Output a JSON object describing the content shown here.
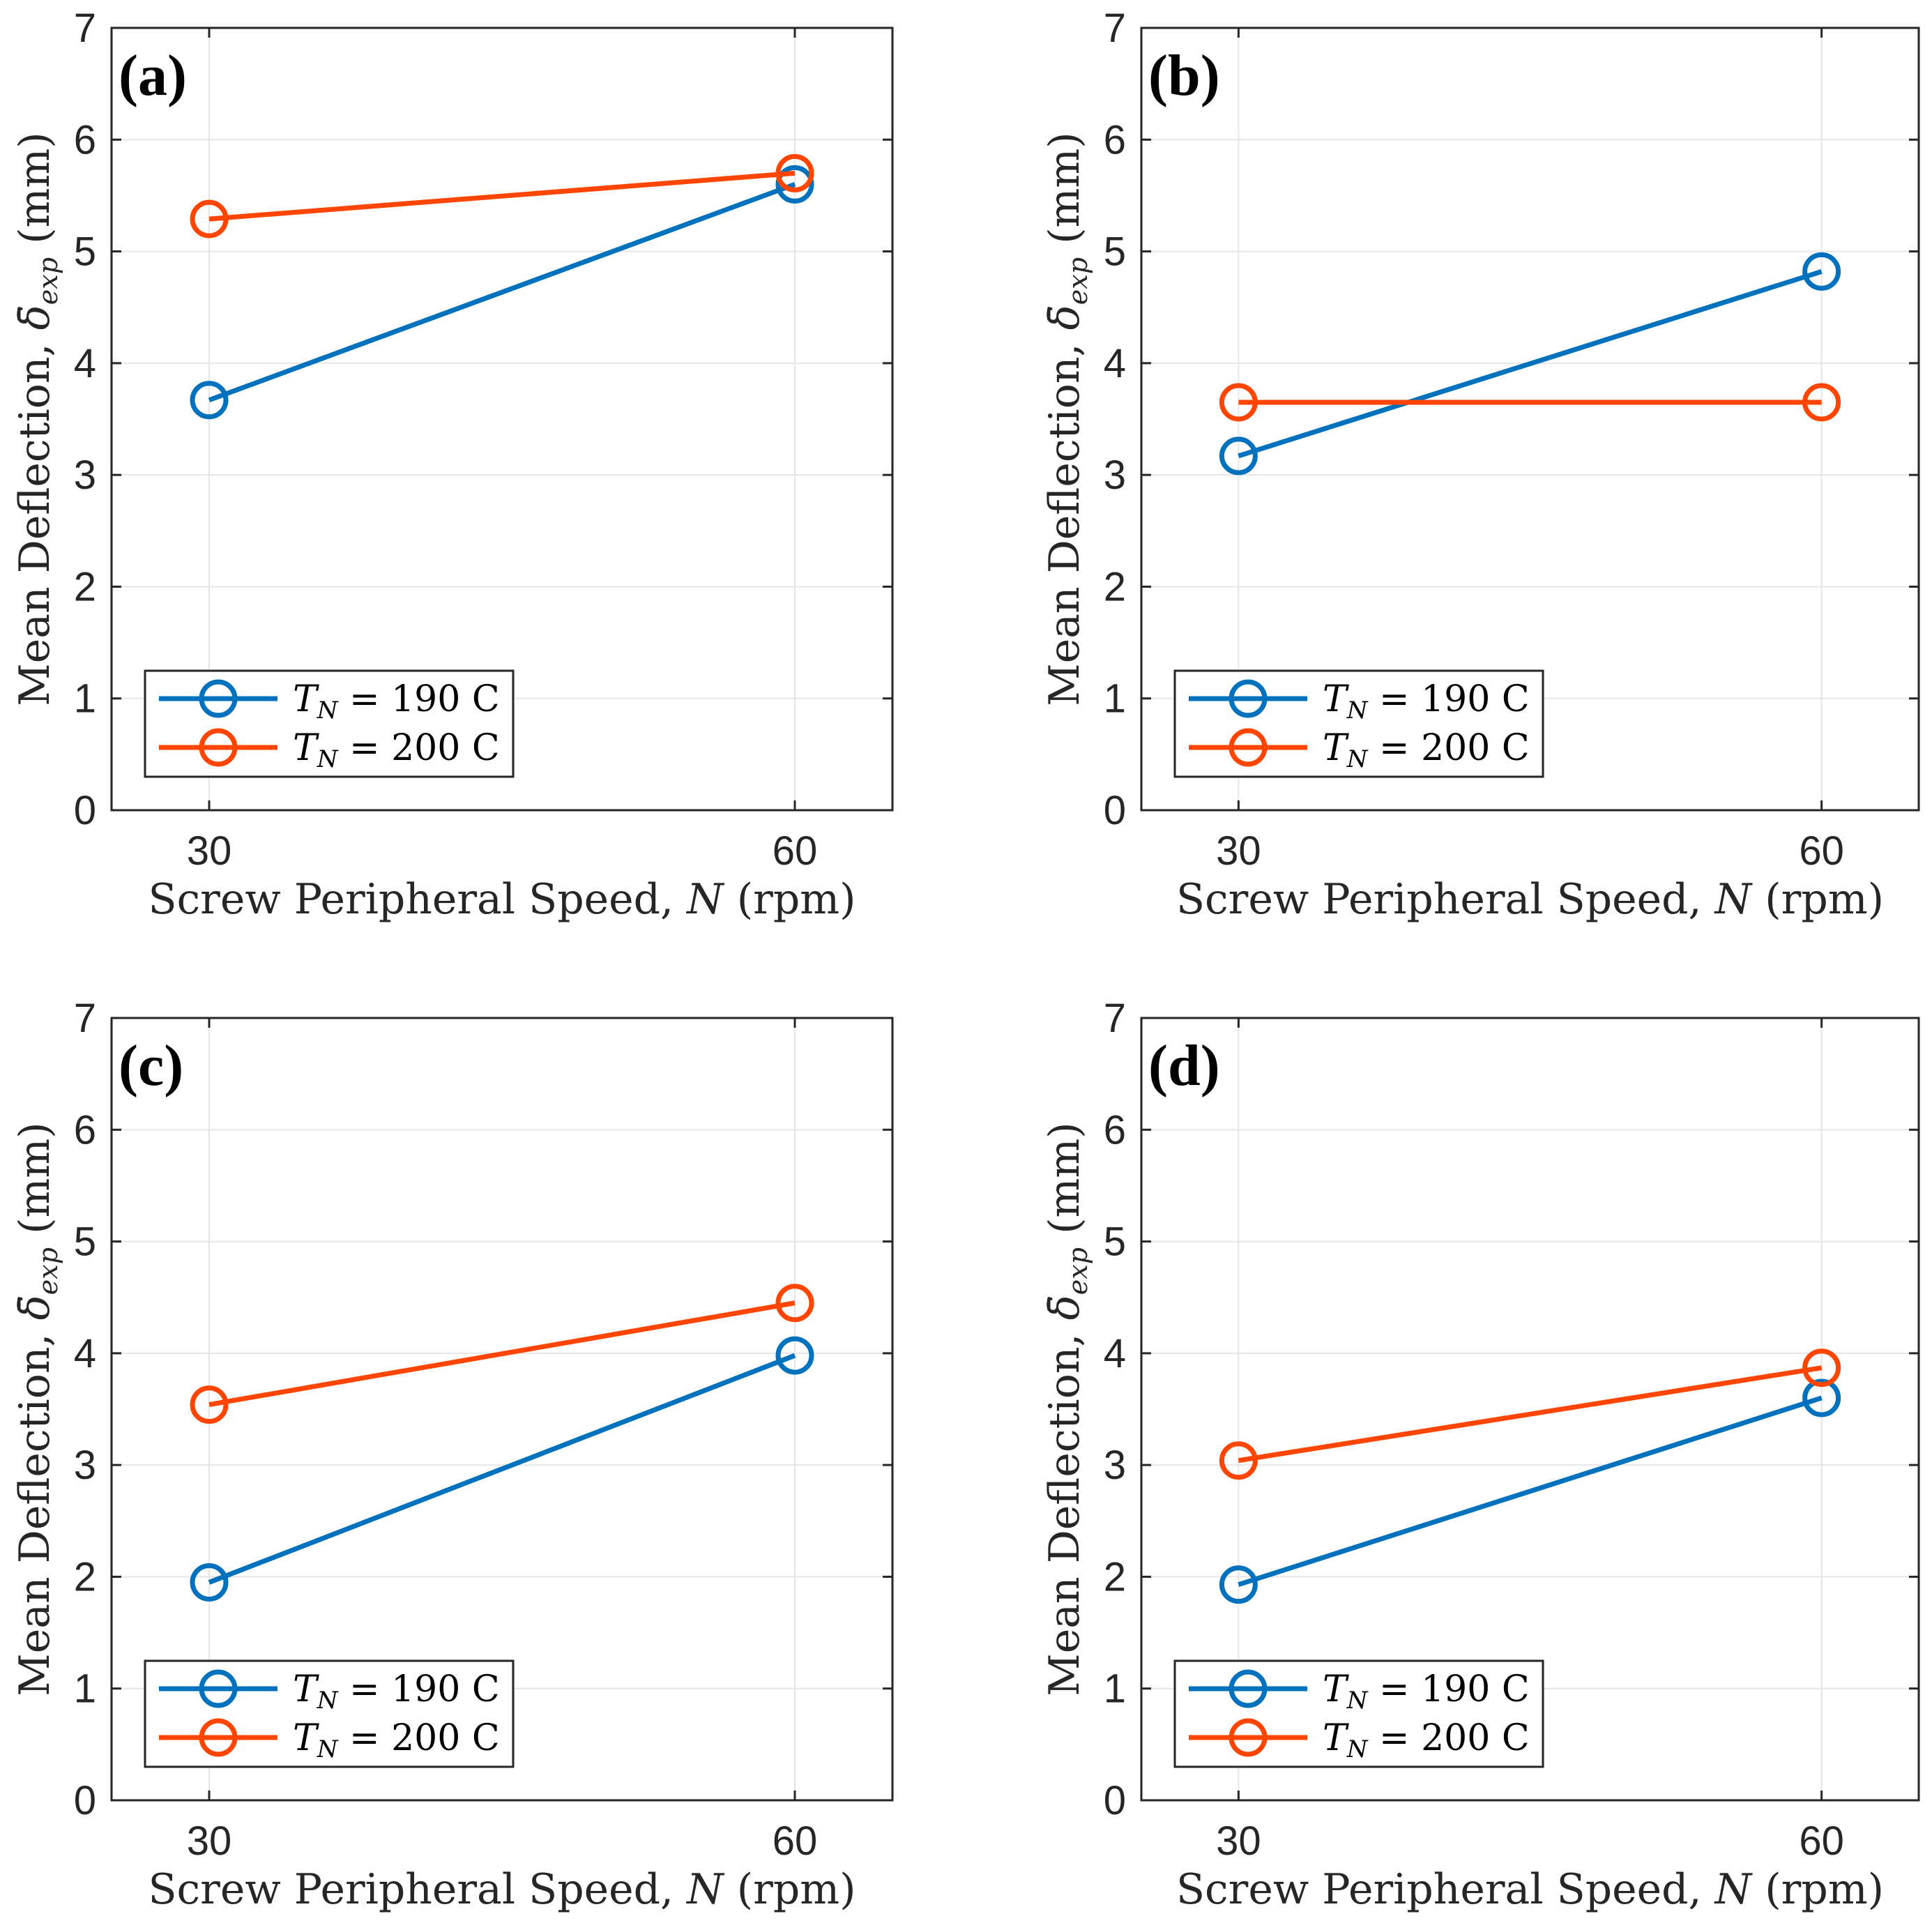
{
  "chart_data": [
    {
      "type": "line",
      "panel_label": "(a)",
      "x": [
        30,
        60
      ],
      "xtick_labels": [
        "30",
        "60"
      ],
      "xlim": [
        25,
        65
      ],
      "ylim": [
        0,
        7
      ],
      "yticks": [
        0,
        1,
        2,
        3,
        4,
        5,
        6,
        7
      ],
      "grid": true,
      "xlabel": "Screw Peripheral Speed, N (rpm)",
      "ylabel": "Mean Deflection, δ̄exp (mm)",
      "legend_position": "bottom-left",
      "series": [
        {
          "name": "T_N = 190 C",
          "values": [
            3.67,
            5.6
          ]
        },
        {
          "name": "T_N = 200 C",
          "values": [
            5.29,
            5.7
          ]
        }
      ]
    },
    {
      "type": "line",
      "panel_label": "(b)",
      "x": [
        30,
        60
      ],
      "xtick_labels": [
        "30",
        "60"
      ],
      "xlim": [
        25,
        65
      ],
      "ylim": [
        0,
        7
      ],
      "yticks": [
        0,
        1,
        2,
        3,
        4,
        5,
        6,
        7
      ],
      "grid": true,
      "xlabel": "Screw Peripheral Speed, N (rpm)",
      "ylabel": "Mean Deflection, δ̄exp (mm)",
      "legend_position": "bottom-left",
      "series": [
        {
          "name": "T_N = 190 C",
          "values": [
            3.17,
            4.82
          ]
        },
        {
          "name": "T_N = 200 C",
          "values": [
            3.65,
            3.65
          ]
        }
      ]
    },
    {
      "type": "line",
      "panel_label": "(c)",
      "x": [
        30,
        60
      ],
      "xtick_labels": [
        "30",
        "60"
      ],
      "xlim": [
        25,
        65
      ],
      "ylim": [
        0,
        7
      ],
      "yticks": [
        0,
        1,
        2,
        3,
        4,
        5,
        6,
        7
      ],
      "grid": true,
      "xlabel": "Screw Peripheral Speed, N (rpm)",
      "ylabel": "Mean Deflection, δ̄exp (mm)",
      "legend_position": "bottom-left",
      "series": [
        {
          "name": "T_N = 190 C",
          "values": [
            1.95,
            3.98
          ]
        },
        {
          "name": "T_N = 200 C",
          "values": [
            3.54,
            4.45
          ]
        }
      ]
    },
    {
      "type": "line",
      "panel_label": "(d)",
      "x": [
        30,
        60
      ],
      "xtick_labels": [
        "30",
        "60"
      ],
      "xlim": [
        25,
        65
      ],
      "ylim": [
        0,
        7
      ],
      "yticks": [
        0,
        1,
        2,
        3,
        4,
        5,
        6,
        7
      ],
      "grid": true,
      "xlabel": "Screw Peripheral Speed, N (rpm)",
      "ylabel": "Mean Deflection, δ̄exp (mm)",
      "legend_position": "bottom-left",
      "series": [
        {
          "name": "T_N = 190 C",
          "values": [
            1.93,
            3.6
          ]
        },
        {
          "name": "T_N = 200 C",
          "values": [
            3.04,
            3.87
          ]
        }
      ]
    }
  ],
  "legend_entries": [
    {
      "symbol": "T",
      "subscript": "N",
      "rest": " = 190 C"
    },
    {
      "symbol": "T",
      "subscript": "N",
      "rest": " = 200 C"
    }
  ],
  "axis_text": {
    "xlabel_prefix": "Screw Peripheral Speed, ",
    "xlabel_var": "N",
    "xlabel_suffix": " (rpm)",
    "ylabel_prefix": "Mean Deflection, ",
    "ylabel_var": "δ̄",
    "ylabel_sub": "exp",
    "ylabel_suffix": " (mm)"
  },
  "colors": {
    "series": [
      "#0072BD",
      "#FF4500"
    ],
    "grid": "#E6E6E6",
    "axis": "#262626"
  }
}
